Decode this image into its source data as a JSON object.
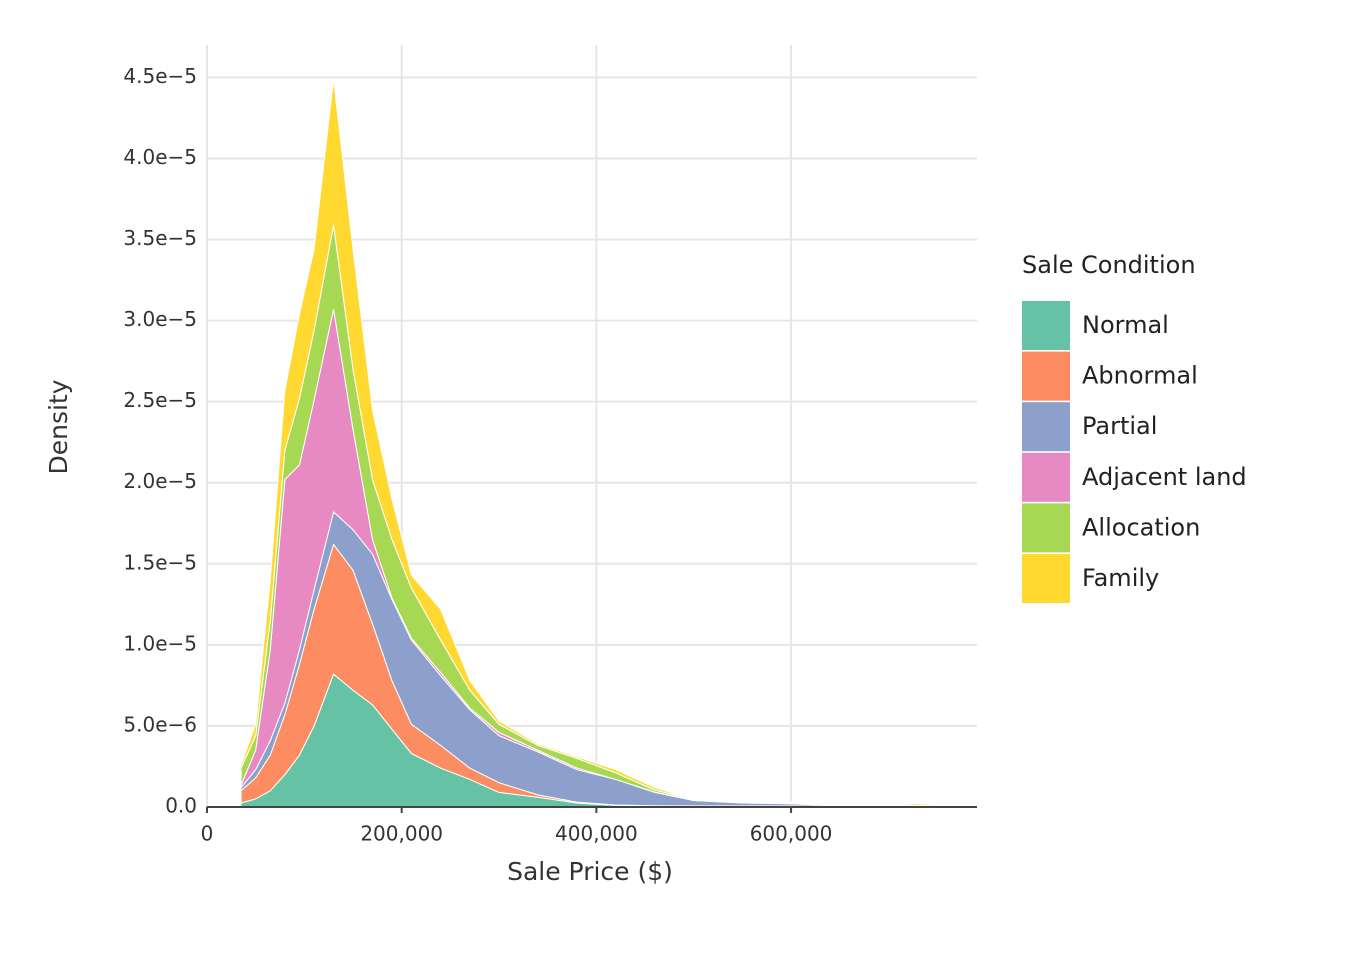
{
  "chart_data": {
    "type": "stacked-area",
    "x_label": "Sale Price ($)",
    "y_label": "Density",
    "legend_title": "Sale Condition",
    "legend_position": "right",
    "grid": true,
    "x": [
      35000,
      50000,
      65000,
      80000,
      95000,
      110000,
      130000,
      150000,
      170000,
      190000,
      210000,
      240000,
      270000,
      300000,
      340000,
      380000,
      420000,
      460000,
      500000,
      550000,
      600000,
      650000,
      700000,
      730000,
      755000
    ],
    "series": [
      {
        "name": "Normal",
        "color": "#66c2a5",
        "values": [
          2.5e-07,
          5e-07,
          1e-06,
          2e-06,
          3.2e-06,
          5e-06,
          8.2e-06,
          7.2e-06,
          6.3e-06,
          4.8e-06,
          3.3e-06,
          2.4e-06,
          1.7e-06,
          9e-07,
          6e-07,
          2.5e-07,
          1e-07,
          5e-08,
          5e-08,
          5e-08,
          5e-08,
          3e-08,
          3e-08,
          5e-08,
          1e-07
        ]
      },
      {
        "name": "Abnormal",
        "color": "#fc8d62",
        "values": [
          7.5e-07,
          1.3e-06,
          2.2e-06,
          3.7e-06,
          5.6e-06,
          7.2e-06,
          8e-06,
          7.4e-06,
          5e-06,
          3e-06,
          1.8e-06,
          1.4e-06,
          7e-07,
          6e-07,
          1.5e-07,
          5e-08,
          2e-08,
          3e-08,
          2e-08,
          2e-08,
          2e-08,
          1e-08,
          1e-08,
          1e-08,
          2e-08
        ]
      },
      {
        "name": "Partial",
        "color": "#8da0cb",
        "values": [
          2e-07,
          5e-07,
          9e-07,
          7e-07,
          9e-07,
          1.2e-06,
          2e-06,
          2.5e-06,
          4.3e-06,
          5e-06,
          5.2e-06,
          4.3e-06,
          3.6e-06,
          2.9e-06,
          2.65e-06,
          2e-06,
          1.58e-06,
          8.2e-07,
          3.3e-07,
          1.8e-07,
          1.3e-07,
          2e-08,
          1e-08,
          1e-08,
          1e-08
        ]
      },
      {
        "name": "Adjacent land",
        "color": "#e78ac3",
        "values": [
          1.5e-07,
          1.2e-06,
          5.6e-06,
          1.38e-05,
          1.14e-05,
          1.17e-05,
          1.25e-05,
          6.2e-06,
          9e-07,
          1e-07,
          1e-07,
          2e-07,
          1e-07,
          2e-07,
          1e-07,
          1e-07,
          0,
          2e-08,
          2e-08,
          2e-08,
          2e-08,
          1e-08,
          0,
          1e-08,
          1e-08
        ]
      },
      {
        "name": "Allocation",
        "color": "#a6d854",
        "values": [
          1.05e-06,
          9e-07,
          1.8e-06,
          1.8e-06,
          4.1e-06,
          4.3e-06,
          5.2e-06,
          3.7e-06,
          3.7e-06,
          3.6e-06,
          3.1e-06,
          2e-06,
          1.1e-06,
          5e-07,
          3e-07,
          6e-07,
          4e-07,
          1.3e-07,
          3e-08,
          0,
          3e-08,
          5e-08,
          1e-08,
          2e-08,
          6e-08
        ]
      },
      {
        "name": "Family",
        "color": "#ffd92f",
        "values": [
          2e-07,
          7e-07,
          2.5e-06,
          3.7e-06,
          5.2e-06,
          5e-06,
          9e-06,
          7.4e-06,
          4.3e-06,
          2.5e-06,
          8e-07,
          1.9e-06,
          6e-07,
          2e-07,
          1e-07,
          1e-07,
          2e-07,
          1.5e-07,
          0,
          3e-08,
          5e-08,
          3e-08,
          1e-08,
          1e-07,
          5e-08
        ]
      }
    ],
    "xlim": [
      0,
      791000
    ],
    "xticks": [
      0,
      {
        "value": 200000,
        "label": "200,000"
      },
      {
        "value": 400000,
        "label": "400,000"
      },
      {
        "value": 600000,
        "label": "600,000"
      }
    ],
    "ylim": [
      0,
      4.7e-05
    ],
    "yticks": [
      {
        "value": 0,
        "label": "0.0"
      },
      {
        "value": 5e-06,
        "label": "5.0e−6"
      },
      {
        "value": 1e-05,
        "label": "1.0e−5"
      },
      {
        "value": 1.5e-05,
        "label": "1.5e−5"
      },
      {
        "value": 2e-05,
        "label": "2.0e−5"
      },
      {
        "value": 2.5e-05,
        "label": "2.5e−5"
      },
      {
        "value": 3e-05,
        "label": "3.0e−5"
      },
      {
        "value": 3.5e-05,
        "label": "3.5e−5"
      },
      {
        "value": 4e-05,
        "label": "4.0e−5"
      },
      {
        "value": 4.5e-05,
        "label": "4.5e−5"
      }
    ]
  }
}
